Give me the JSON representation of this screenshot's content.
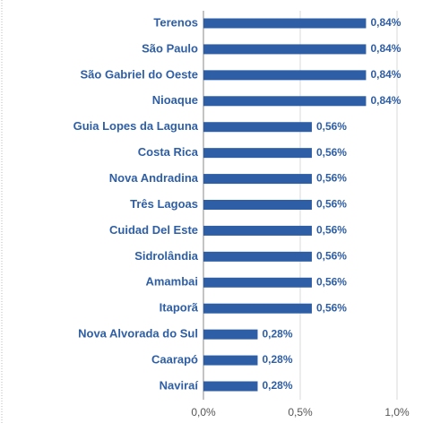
{
  "chart_data": {
    "type": "bar",
    "orientation": "horizontal",
    "categories": [
      "Terenos",
      "São Paulo",
      "São Gabriel do Oeste",
      "Nioaque",
      "Guia Lopes da Laguna",
      "Costa Rica",
      "Nova Andradina",
      "Três Lagoas",
      "Cuidad Del Este",
      "Sidrolândia",
      "Amambai",
      "Itaporã",
      "Nova Alvorada do Sul",
      "Caarapó",
      "Naviraí"
    ],
    "values": [
      0.84,
      0.84,
      0.84,
      0.84,
      0.56,
      0.56,
      0.56,
      0.56,
      0.56,
      0.56,
      0.56,
      0.56,
      0.28,
      0.28,
      0.28
    ],
    "value_labels": [
      "0,84%",
      "0,84%",
      "0,84%",
      "0,84%",
      "0,56%",
      "0,56%",
      "0,56%",
      "0,56%",
      "0,56%",
      "0,56%",
      "0,56%",
      "0,56%",
      "0,28%",
      "0,28%",
      "0,28%"
    ],
    "color": "#2e5fa6",
    "xlim": [
      0,
      1
    ],
    "xticks": [
      {
        "value": 0,
        "label": "0,0%"
      },
      {
        "value": 0.5,
        "label": "0,5%"
      },
      {
        "value": 1,
        "label": "1,0%"
      }
    ],
    "grid": true
  }
}
